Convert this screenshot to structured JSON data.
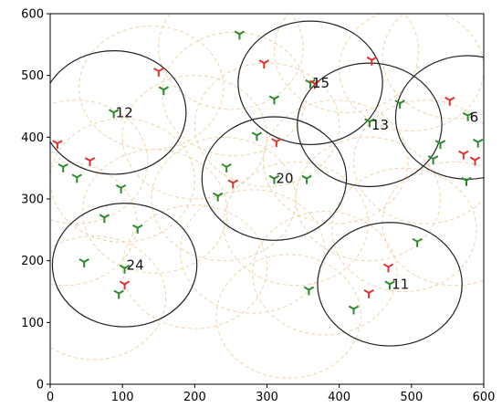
{
  "chart_data": {
    "type": "scatter",
    "title": "",
    "xlabel": "",
    "ylabel": "",
    "xlim": [
      0,
      600
    ],
    "ylim": [
      0,
      600
    ],
    "x_ticks": [
      "0",
      "100",
      "200",
      "300",
      "400",
      "500",
      "600"
    ],
    "y_ticks": [
      "0",
      "100",
      "200",
      "300",
      "400",
      "500",
      "600"
    ],
    "grid": false,
    "colors": {
      "selected_circle": "#222222",
      "candidate_circle": "#f0d4a8",
      "green_marker": "#2a8a2a",
      "red_marker": "#e03030",
      "axis": "#000000"
    },
    "selected_circles": [
      {
        "label": "12",
        "x": 88,
        "y": 440,
        "r": 100
      },
      {
        "label": "15",
        "x": 360,
        "y": 488,
        "r": 100
      },
      {
        "label": "13",
        "x": 442,
        "y": 420,
        "r": 100
      },
      {
        "label": "6",
        "x": 578,
        "y": 432,
        "r": 100
      },
      {
        "label": "20",
        "x": 310,
        "y": 333,
        "r": 100
      },
      {
        "label": "24",
        "x": 103,
        "y": 193,
        "r": 100
      },
      {
        "label": "11",
        "x": 470,
        "y": 162,
        "r": 100
      }
    ],
    "candidate_circles": [
      {
        "x": 140,
        "y": 480,
        "r": 100
      },
      {
        "x": 250,
        "y": 545,
        "r": 100
      },
      {
        "x": 200,
        "y": 400,
        "r": 100
      },
      {
        "x": 35,
        "y": 360,
        "r": 100
      },
      {
        "x": 20,
        "y": 260,
        "r": 100
      },
      {
        "x": 145,
        "y": 280,
        "r": 100
      },
      {
        "x": 240,
        "y": 300,
        "r": 100
      },
      {
        "x": 300,
        "y": 420,
        "r": 100
      },
      {
        "x": 395,
        "y": 360,
        "r": 100
      },
      {
        "x": 520,
        "y": 360,
        "r": 100
      },
      {
        "x": 490,
        "y": 250,
        "r": 100
      },
      {
        "x": 560,
        "y": 260,
        "r": 100
      },
      {
        "x": 380,
        "y": 180,
        "r": 100
      },
      {
        "x": 330,
        "y": 110,
        "r": 100
      },
      {
        "x": 440,
        "y": 300,
        "r": 100
      },
      {
        "x": 60,
        "y": 140,
        "r": 100
      },
      {
        "x": 200,
        "y": 190,
        "r": 100
      },
      {
        "x": 280,
        "y": 215,
        "r": 100
      },
      {
        "x": 410,
        "y": 540,
        "r": 100
      },
      {
        "x": 500,
        "y": 510,
        "r": 100
      },
      {
        "x": 560,
        "y": 530,
        "r": 100
      },
      {
        "x": 100,
        "y": 330,
        "r": 100
      },
      {
        "x": 340,
        "y": 260,
        "r": 100
      },
      {
        "x": 255,
        "y": 470,
        "r": 100
      }
    ],
    "green_points": [
      {
        "x": 262,
        "y": 567
      },
      {
        "x": 157,
        "y": 477
      },
      {
        "x": 88,
        "y": 440
      },
      {
        "x": 310,
        "y": 462
      },
      {
        "x": 360,
        "y": 488
      },
      {
        "x": 484,
        "y": 455
      },
      {
        "x": 442,
        "y": 425
      },
      {
        "x": 578,
        "y": 435
      },
      {
        "x": 286,
        "y": 403
      },
      {
        "x": 540,
        "y": 390
      },
      {
        "x": 592,
        "y": 392
      },
      {
        "x": 530,
        "y": 365
      },
      {
        "x": 576,
        "y": 330
      },
      {
        "x": 18,
        "y": 352
      },
      {
        "x": 37,
        "y": 335
      },
      {
        "x": 98,
        "y": 318
      },
      {
        "x": 244,
        "y": 352
      },
      {
        "x": 232,
        "y": 305
      },
      {
        "x": 310,
        "y": 333
      },
      {
        "x": 355,
        "y": 333
      },
      {
        "x": 75,
        "y": 270
      },
      {
        "x": 121,
        "y": 253
      },
      {
        "x": 47,
        "y": 198
      },
      {
        "x": 103,
        "y": 188
      },
      {
        "x": 95,
        "y": 147
      },
      {
        "x": 508,
        "y": 231
      },
      {
        "x": 470,
        "y": 162
      },
      {
        "x": 358,
        "y": 153
      },
      {
        "x": 420,
        "y": 122
      }
    ],
    "red_points": [
      {
        "x": 150,
        "y": 507
      },
      {
        "x": 296,
        "y": 520
      },
      {
        "x": 366,
        "y": 487
      },
      {
        "x": 445,
        "y": 525
      },
      {
        "x": 553,
        "y": 460
      },
      {
        "x": 10,
        "y": 390
      },
      {
        "x": 55,
        "y": 362
      },
      {
        "x": 313,
        "y": 393
      },
      {
        "x": 572,
        "y": 373
      },
      {
        "x": 588,
        "y": 363
      },
      {
        "x": 253,
        "y": 326
      },
      {
        "x": 103,
        "y": 162
      },
      {
        "x": 468,
        "y": 190
      },
      {
        "x": 441,
        "y": 148
      }
    ]
  }
}
